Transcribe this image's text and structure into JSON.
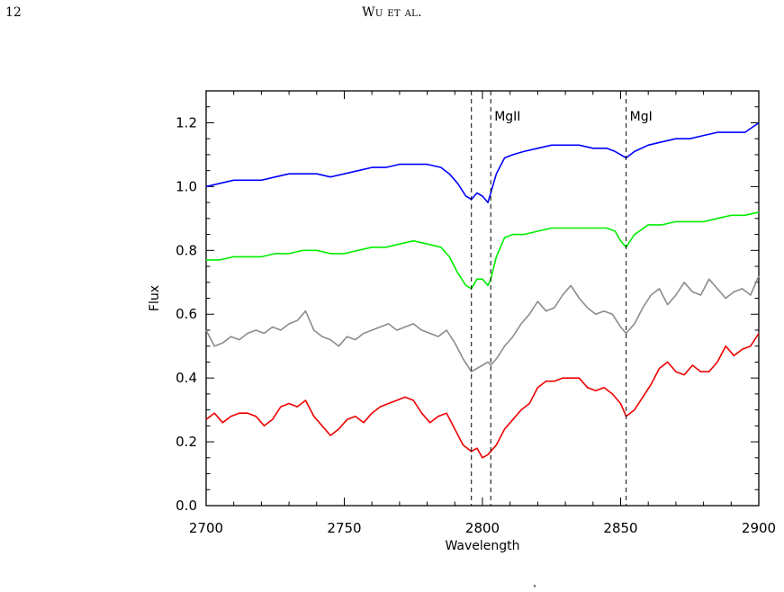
{
  "header": {
    "page_number": "12",
    "running_head": "Wu et al."
  },
  "footer_mark": "°",
  "chart_data": {
    "type": "line",
    "title": "",
    "xlabel": "Wavelength",
    "ylabel": "Flux",
    "xlim": [
      2700,
      2900
    ],
    "ylim": [
      0.0,
      1.3
    ],
    "x_ticks": [
      "2700",
      "2750",
      "2800",
      "2850",
      "2900"
    ],
    "y_ticks": [
      "0.0",
      "0.2",
      "0.4",
      "0.6",
      "0.8",
      "1.0",
      "1.2"
    ],
    "grid": false,
    "legend": "none",
    "reference_lines": [
      {
        "x": 2796,
        "label": ""
      },
      {
        "x": 2803,
        "label": "MgII"
      },
      {
        "x": 2852,
        "label": "MgI"
      }
    ],
    "series": [
      {
        "color": "#0000ff",
        "x": [
          2700,
          2705,
          2710,
          2715,
          2720,
          2725,
          2730,
          2735,
          2740,
          2745,
          2750,
          2755,
          2760,
          2765,
          2770,
          2775,
          2780,
          2785,
          2788,
          2791,
          2794,
          2796,
          2798,
          2800,
          2802,
          2803,
          2805,
          2808,
          2811,
          2815,
          2820,
          2825,
          2830,
          2835,
          2840,
          2845,
          2848,
          2850,
          2852,
          2855,
          2860,
          2865,
          2870,
          2875,
          2880,
          2885,
          2890,
          2895,
          2900
        ],
        "y": [
          1.0,
          1.01,
          1.02,
          1.02,
          1.02,
          1.03,
          1.04,
          1.04,
          1.04,
          1.03,
          1.04,
          1.05,
          1.06,
          1.06,
          1.07,
          1.07,
          1.07,
          1.06,
          1.04,
          1.01,
          0.97,
          0.96,
          0.98,
          0.97,
          0.95,
          0.98,
          1.04,
          1.09,
          1.1,
          1.11,
          1.12,
          1.13,
          1.13,
          1.13,
          1.12,
          1.12,
          1.11,
          1.1,
          1.09,
          1.11,
          1.13,
          1.14,
          1.15,
          1.15,
          1.16,
          1.17,
          1.17,
          1.17,
          1.2
        ]
      },
      {
        "color": "#00ee00",
        "x": [
          2700,
          2705,
          2710,
          2715,
          2720,
          2725,
          2730,
          2735,
          2740,
          2745,
          2750,
          2755,
          2760,
          2765,
          2770,
          2775,
          2780,
          2785,
          2788,
          2791,
          2794,
          2796,
          2798,
          2800,
          2802,
          2803,
          2805,
          2808,
          2811,
          2815,
          2820,
          2825,
          2830,
          2835,
          2840,
          2845,
          2848,
          2850,
          2852,
          2855,
          2860,
          2865,
          2870,
          2875,
          2880,
          2885,
          2890,
          2895,
          2900
        ],
        "y": [
          0.77,
          0.77,
          0.78,
          0.78,
          0.78,
          0.79,
          0.79,
          0.8,
          0.8,
          0.79,
          0.79,
          0.8,
          0.81,
          0.81,
          0.82,
          0.83,
          0.82,
          0.81,
          0.78,
          0.73,
          0.69,
          0.68,
          0.71,
          0.71,
          0.69,
          0.71,
          0.78,
          0.84,
          0.85,
          0.85,
          0.86,
          0.87,
          0.87,
          0.87,
          0.87,
          0.87,
          0.86,
          0.83,
          0.81,
          0.85,
          0.88,
          0.88,
          0.89,
          0.89,
          0.89,
          0.9,
          0.91,
          0.91,
          0.92
        ]
      },
      {
        "color": "#8c8c8c",
        "x": [
          2700,
          2703,
          2706,
          2709,
          2712,
          2715,
          2718,
          2721,
          2724,
          2727,
          2730,
          2733,
          2736,
          2739,
          2742,
          2745,
          2748,
          2751,
          2754,
          2757,
          2760,
          2763,
          2766,
          2769,
          2772,
          2775,
          2778,
          2781,
          2784,
          2787,
          2790,
          2793,
          2796,
          2798,
          2800,
          2802,
          2803,
          2805,
          2808,
          2811,
          2814,
          2817,
          2820,
          2823,
          2826,
          2829,
          2832,
          2835,
          2838,
          2841,
          2844,
          2847,
          2850,
          2852,
          2855,
          2858,
          2861,
          2864,
          2867,
          2870,
          2873,
          2876,
          2879,
          2882,
          2885,
          2888,
          2891,
          2894,
          2897,
          2900
        ],
        "y": [
          0.55,
          0.5,
          0.51,
          0.53,
          0.52,
          0.54,
          0.55,
          0.54,
          0.56,
          0.55,
          0.57,
          0.58,
          0.61,
          0.55,
          0.53,
          0.52,
          0.5,
          0.53,
          0.52,
          0.54,
          0.55,
          0.56,
          0.57,
          0.55,
          0.56,
          0.57,
          0.55,
          0.54,
          0.53,
          0.55,
          0.51,
          0.46,
          0.42,
          0.43,
          0.44,
          0.45,
          0.44,
          0.46,
          0.5,
          0.53,
          0.57,
          0.6,
          0.64,
          0.61,
          0.62,
          0.66,
          0.69,
          0.65,
          0.62,
          0.6,
          0.61,
          0.6,
          0.56,
          0.54,
          0.57,
          0.62,
          0.66,
          0.68,
          0.63,
          0.66,
          0.7,
          0.67,
          0.66,
          0.71,
          0.68,
          0.65,
          0.67,
          0.68,
          0.66,
          0.72
        ]
      },
      {
        "color": "#ee0000",
        "x": [
          2700,
          2703,
          2706,
          2709,
          2712,
          2715,
          2718,
          2721,
          2724,
          2727,
          2730,
          2733,
          2736,
          2739,
          2742,
          2745,
          2748,
          2751,
          2754,
          2757,
          2760,
          2763,
          2766,
          2769,
          2772,
          2775,
          2778,
          2781,
          2784,
          2787,
          2790,
          2793,
          2796,
          2798,
          2800,
          2802,
          2803,
          2805,
          2808,
          2811,
          2814,
          2817,
          2820,
          2823,
          2826,
          2829,
          2832,
          2835,
          2838,
          2841,
          2844,
          2847,
          2850,
          2852,
          2855,
          2858,
          2861,
          2864,
          2867,
          2870,
          2873,
          2876,
          2879,
          2882,
          2885,
          2888,
          2891,
          2894,
          2897,
          2900
        ],
        "y": [
          0.27,
          0.29,
          0.26,
          0.28,
          0.29,
          0.29,
          0.28,
          0.25,
          0.27,
          0.31,
          0.32,
          0.31,
          0.33,
          0.28,
          0.25,
          0.22,
          0.24,
          0.27,
          0.28,
          0.26,
          0.29,
          0.31,
          0.32,
          0.33,
          0.34,
          0.33,
          0.29,
          0.26,
          0.28,
          0.29,
          0.24,
          0.19,
          0.17,
          0.18,
          0.15,
          0.16,
          0.17,
          0.19,
          0.24,
          0.27,
          0.3,
          0.32,
          0.37,
          0.39,
          0.39,
          0.4,
          0.4,
          0.4,
          0.37,
          0.36,
          0.37,
          0.35,
          0.32,
          0.28,
          0.3,
          0.34,
          0.38,
          0.43,
          0.45,
          0.42,
          0.41,
          0.44,
          0.42,
          0.42,
          0.45,
          0.5,
          0.47,
          0.49,
          0.5,
          0.54
        ]
      }
    ]
  }
}
